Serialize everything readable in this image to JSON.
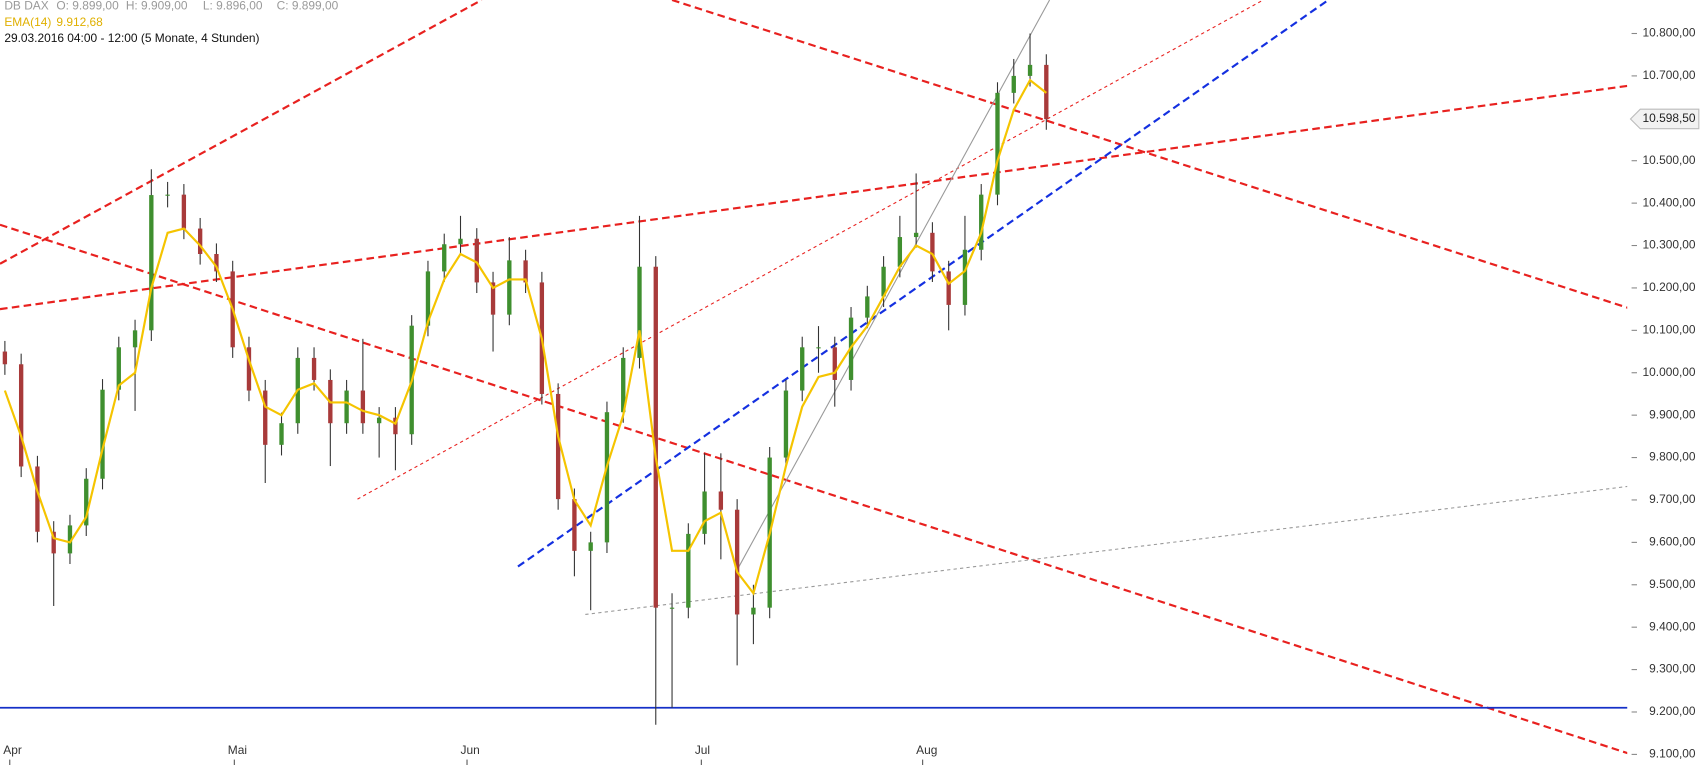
{
  "chart_data": {
    "type": "candlestick",
    "info": {
      "symbol": "DB DAX",
      "open": "O: 9.899,00",
      "high": "H: 9.909,00",
      "low": "L: 9.896,00",
      "close": "C: 9.899,00",
      "ema_name": "EMA(14)",
      "ema_value": "9.912,68",
      "period": "29.03.2016 04:00 - 12:00 (5 Monate, 4 Stunden)"
    },
    "x": [
      0,
      1,
      2,
      3,
      4,
      5,
      6,
      7,
      8,
      9,
      10,
      11,
      12,
      13,
      14,
      15,
      16,
      17,
      18,
      19,
      20,
      21,
      22,
      23,
      24,
      25,
      26,
      27,
      28,
      29,
      30,
      31,
      32,
      33,
      34,
      35,
      36,
      37,
      38,
      39,
      40,
      41,
      42,
      43,
      44,
      45,
      46,
      47,
      48,
      49,
      50,
      51,
      52,
      53,
      54,
      55,
      56,
      57,
      58,
      59,
      60,
      61,
      62,
      63,
      64
    ],
    "open": [
      10050,
      10020,
      9779,
      9625,
      9574,
      9640,
      9750,
      9960,
      10060,
      10100,
      10419,
      10420,
      10340,
      10280,
      10239,
      10060,
      9958,
      9830,
      9881,
      10035,
      9983,
      9881,
      9958,
      9881,
      9894,
      9855,
      10111,
      10239,
      10303,
      10316,
      10213,
      10137,
      10265,
      10213,
      9950,
      9702,
      9580,
      9600,
      9907,
      10035,
      10250,
      9446,
      9446,
      9620,
      9720,
      9677,
      9430,
      9446,
      9800,
      9958,
      10060,
      10060,
      9983,
      10130,
      10180,
      10250,
      10320,
      10330,
      10239,
      10160,
      10290,
      10420,
      10660,
      10700,
      10726
    ],
    "high": [
      10075,
      10045,
      9804,
      9650,
      9665,
      9775,
      9985,
      10085,
      10125,
      10480,
      10450,
      10445,
      10365,
      10305,
      10264,
      10085,
      9983,
      9906,
      10060,
      10060,
      10008,
      9983,
      10080,
      9919,
      9919,
      10136,
      10264,
      10328,
      10370,
      10341,
      10238,
      10320,
      10290,
      10238,
      9975,
      9727,
      9625,
      9932,
      10060,
      10370,
      10275,
      9480,
      9645,
      9810,
      9810,
      9702,
      9500,
      9825,
      9983,
      10085,
      10110,
      10085,
      10155,
      10205,
      10275,
      10370,
      10470,
      10355,
      10264,
      10370,
      10445,
      10685,
      10740,
      10800,
      10751
    ],
    "low": [
      9995,
      9754,
      9600,
      9450,
      9549,
      9615,
      9725,
      9935,
      9910,
      10075,
      10390,
      10315,
      10255,
      10214,
      10035,
      9933,
      9740,
      9805,
      9856,
      9958,
      9780,
      9856,
      9856,
      9800,
      9770,
      9830,
      10086,
      10214,
      10278,
      10188,
      10050,
      10112,
      10188,
      9925,
      9677,
      9520,
      9440,
      9575,
      9882,
      10010,
      9170,
      9210,
      9421,
      9595,
      9560,
      9310,
      9360,
      9421,
      9775,
      9933,
      10000,
      9920,
      9958,
      10105,
      10155,
      10225,
      10295,
      10214,
      10100,
      10135,
      10265,
      10395,
      10635,
      10675,
      10573
    ],
    "close": [
      10020,
      9779,
      9625,
      9574,
      9640,
      9750,
      9960,
      10060,
      10100,
      10419,
      10420,
      10340,
      10280,
      10239,
      10060,
      9958,
      9830,
      9881,
      10035,
      9983,
      9881,
      9958,
      9881,
      9894,
      9855,
      10111,
      10239,
      10303,
      10316,
      10213,
      10137,
      10265,
      10213,
      9950,
      9702,
      9580,
      9600,
      9907,
      10035,
      10250,
      9446,
      9446,
      9620,
      9720,
      9677,
      9430,
      9446,
      9800,
      9958,
      10060,
      10060,
      9983,
      10130,
      10180,
      10250,
      10320,
      10330,
      10239,
      10160,
      10290,
      10420,
      10660,
      10700,
      10726,
      10598
    ],
    "up_color": "#3f8f2f",
    "down_color": "#a83a3a",
    "ema": {
      "color": "#f5c400",
      "values": [
        9958,
        9850,
        9720,
        9610,
        9600,
        9660,
        9820,
        9970,
        10000,
        10200,
        10330,
        10340,
        10300,
        10250,
        10150,
        10030,
        9920,
        9900,
        9960,
        9975,
        9930,
        9930,
        9910,
        9900,
        9880,
        9980,
        10120,
        10220,
        10280,
        10260,
        10200,
        10220,
        10220,
        10080,
        9850,
        9700,
        9640,
        9780,
        9900,
        10100,
        9800,
        9580,
        9580,
        9650,
        9670,
        9530,
        9480,
        9620,
        9780,
        9920,
        9990,
        10000,
        10060,
        10110,
        10180,
        10250,
        10300,
        10280,
        10210,
        10240,
        10330,
        10500,
        10620,
        10690,
        10660
      ]
    },
    "lines": [
      {
        "color": "#e8211f",
        "style": "dashed",
        "x": [
          -0.3,
          29.3
        ],
        "y": [
          10257,
          10879
        ]
      },
      {
        "color": "#e8211f",
        "style": "dashed",
        "x": [
          -0.3,
          104.2
        ],
        "y": [
          10150,
          10700
        ]
      },
      {
        "color": "#e8211f",
        "style": "dashed",
        "x": [
          -0.3,
          101
        ],
        "y": [
          10349,
          9087
        ]
      },
      {
        "color": "#e8211f",
        "style": "dashed",
        "x": [
          41,
          104.2
        ],
        "y": [
          10879,
          10098
        ]
      },
      {
        "color": "#e8211f",
        "style": "dotted",
        "x": [
          21.67,
          77.33
        ],
        "y": [
          9702,
          10879
        ]
      },
      {
        "color": "#1430e0",
        "style": "dashed",
        "x": [
          31.53,
          81.33
        ],
        "y": [
          9543,
          10879
        ]
      },
      {
        "color": "#1430c8",
        "style": "solid",
        "x": [
          -0.3,
          104.2
        ],
        "y": [
          9210,
          9210
        ]
      },
      {
        "color": "#999999",
        "style": "solid",
        "x": [
          45,
          64.2
        ],
        "y": [
          9535,
          10879
        ]
      },
      {
        "color": "#999999",
        "style": "dotted",
        "x": [
          35.67,
          104.2
        ],
        "y": [
          9430,
          9753
        ]
      }
    ],
    "last_price": {
      "value": 10598.5,
      "label": "10.598,50"
    },
    "xlim": [
      -0.3,
      99.7
    ],
    "ylim": [
      9075,
      10879
    ],
    "xticks": [
      {
        "value": 0.3,
        "label": "Apr"
      },
      {
        "value": 14.1,
        "label": "Mai"
      },
      {
        "value": 28.4,
        "label": "Jun"
      },
      {
        "value": 42.8,
        "label": "Jul"
      },
      {
        "value": 56.4,
        "label": "Aug"
      }
    ],
    "yticks": [
      {
        "value": 9100,
        "label": "9.100,00"
      },
      {
        "value": 9200,
        "label": "9.200,00"
      },
      {
        "value": 9300,
        "label": "9.300,00"
      },
      {
        "value": 9400,
        "label": "9.400,00"
      },
      {
        "value": 9500,
        "label": "9.500,00"
      },
      {
        "value": 9600,
        "label": "9.600,00"
      },
      {
        "value": 9700,
        "label": "9.700,00"
      },
      {
        "value": 9800,
        "label": "9.800,00"
      },
      {
        "value": 9900,
        "label": "9.900,00"
      },
      {
        "value": 10000,
        "label": "10.000,00"
      },
      {
        "value": 10100,
        "label": "10.100,00"
      },
      {
        "value": 10200,
        "label": "10.200,00"
      },
      {
        "value": 10300,
        "label": "10.300,00"
      },
      {
        "value": 10400,
        "label": "10.400,00"
      },
      {
        "value": 10500,
        "label": "10.500,00"
      },
      {
        "value": 10600,
        "label": "10.600,00"
      },
      {
        "value": 10700,
        "label": "10.700,00"
      },
      {
        "value": 10800,
        "label": "10.800,00"
      }
    ]
  }
}
